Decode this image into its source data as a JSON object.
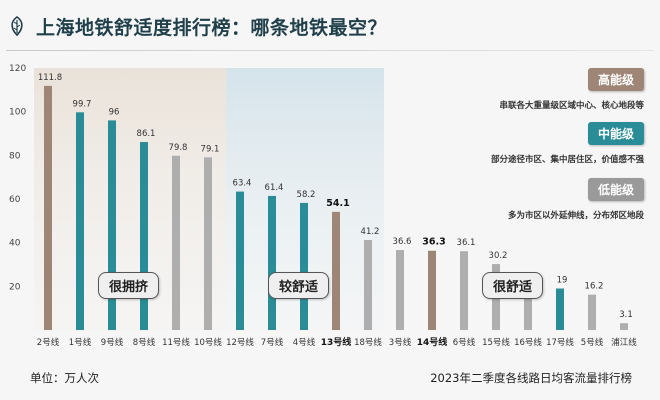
{
  "title": "上海地铁舒适度排行榜：哪条地铁最空？",
  "unit_label": "单位：万人次",
  "source_label": "2023年二季度各线路日均客流量排行榜",
  "zones": [
    {
      "label": "很拥挤"
    },
    {
      "label": "较舒适"
    },
    {
      "label": "很舒适"
    }
  ],
  "legend": [
    {
      "tag": "高能级",
      "desc": "串联各大重量级区域中心、核心地段等",
      "color": "#9e8576"
    },
    {
      "tag": "中能级",
      "desc": "部分途径市区、集中居住区，价值感不强",
      "color": "#2a8c97"
    },
    {
      "tag": "低能级",
      "desc": "多为市区以外延伸线，分布郊区地段",
      "color": "#9a9a9a"
    }
  ],
  "colors": {
    "high": "#9e8576",
    "mid": "#2a8c97",
    "low": "#aeaeae",
    "title": "#1f3f4a"
  },
  "chart_data": {
    "type": "bar",
    "ylim": [
      0,
      120
    ],
    "yticks": [
      20,
      40,
      60,
      80,
      100,
      120
    ],
    "categories": [
      "2号线",
      "1号线",
      "9号线",
      "8号线",
      "11号线",
      "10号线",
      "12号线",
      "7号线",
      "4号线",
      "13号线",
      "18号线",
      "3号线",
      "14号线",
      "6号线",
      "15号线",
      "16号线",
      "17号线",
      "5号线",
      "浦江线"
    ],
    "values": [
      111.8,
      99.7,
      96,
      86.1,
      79.8,
      79.1,
      63.4,
      61.4,
      58.2,
      54.1,
      41.2,
      36.6,
      36.3,
      36.1,
      30.2,
      19.7,
      19,
      16.2,
      3.1
    ],
    "value_labels": [
      "111.8",
      "99.7",
      "96",
      "86.1",
      "79.8",
      "79.1",
      "63.4",
      "61.4",
      "58.2",
      "54.1",
      "41.2",
      "36.6",
      "36.3",
      "36.1",
      "30.2",
      "19.7",
      "19",
      "16.2",
      "3.1"
    ],
    "tier": [
      "high",
      "mid",
      "mid",
      "mid",
      "low",
      "low",
      "mid",
      "mid",
      "mid",
      "high",
      "low",
      "low",
      "high",
      "low",
      "low",
      "low",
      "mid",
      "low",
      "low"
    ],
    "bold": [
      false,
      false,
      false,
      false,
      false,
      false,
      false,
      false,
      false,
      true,
      false,
      false,
      true,
      false,
      false,
      false,
      false,
      false,
      false
    ],
    "grid": false
  }
}
